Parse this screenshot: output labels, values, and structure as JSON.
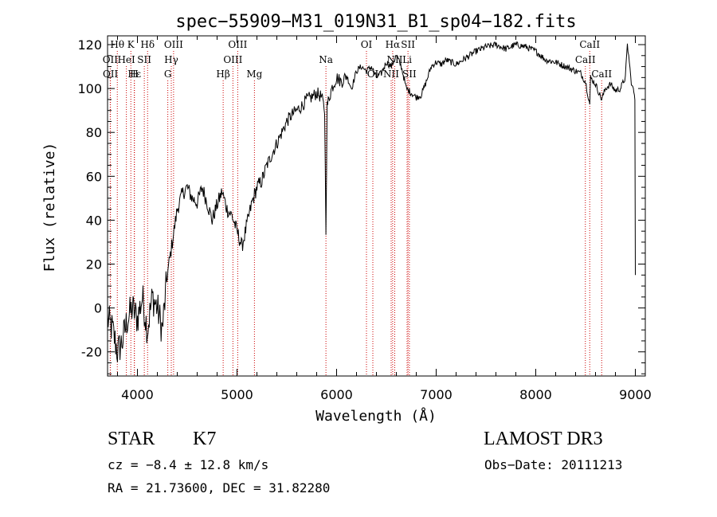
{
  "chart_data": {
    "type": "line",
    "title": "spec−55909−M31_019N31_B1_sp04−182.fits",
    "xlabel": "Wavelength (Å)",
    "ylabel": "Flux (relative)",
    "xlim": [
      3700,
      9100
    ],
    "ylim": [
      -31,
      124
    ],
    "xticks": [
      4000,
      5000,
      6000,
      7000,
      8000,
      9000
    ],
    "yticks": [
      -20,
      0,
      20,
      40,
      60,
      80,
      100,
      120
    ],
    "grid": false,
    "series": [
      {
        "name": "flux",
        "x": [
          3700,
          3750,
          3800,
          3850,
          3900,
          3950,
          4000,
          4050,
          4100,
          4150,
          4200,
          4250,
          4300,
          4350,
          4400,
          4450,
          4500,
          4550,
          4600,
          4650,
          4700,
          4750,
          4800,
          4850,
          4900,
          4950,
          5000,
          5050,
          5100,
          5150,
          5200,
          5250,
          5300,
          5350,
          5400,
          5450,
          5500,
          5550,
          5600,
          5650,
          5700,
          5750,
          5800,
          5850,
          5880,
          5893,
          5905,
          5950,
          6000,
          6050,
          6100,
          6150,
          6200,
          6250,
          6300,
          6350,
          6400,
          6450,
          6500,
          6550,
          6600,
          6650,
          6700,
          6750,
          6800,
          6850,
          6900,
          6950,
          7000,
          7050,
          7100,
          7150,
          7200,
          7300,
          7400,
          7500,
          7600,
          7700,
          7800,
          7900,
          8000,
          8100,
          8200,
          8300,
          8400,
          8450,
          8500,
          8542,
          8550,
          8600,
          8662,
          8700,
          8750,
          8800,
          8850,
          8900,
          8920,
          8940,
          8960,
          8980,
          8995,
          9000
        ],
        "y": [
          -5,
          -10,
          -20,
          -15,
          -5,
          0,
          -5,
          5,
          -10,
          5,
          0,
          -10,
          15,
          30,
          45,
          52,
          55,
          50,
          48,
          55,
          48,
          40,
          47,
          53,
          45,
          42,
          35,
          28,
          38,
          48,
          55,
          58,
          65,
          70,
          75,
          80,
          85,
          88,
          90,
          92,
          95,
          96,
          98,
          96,
          90,
          36,
          92,
          100,
          105,
          103,
          106,
          100,
          108,
          110,
          108,
          110,
          105,
          107,
          112,
          110,
          115,
          110,
          100,
          98,
          96,
          97,
          103,
          110,
          112,
          111,
          113,
          112,
          111,
          114,
          117,
          119,
          120,
          118,
          120,
          119,
          117,
          113,
          112,
          110,
          108,
          107,
          103,
          93,
          105,
          102,
          95,
          100,
          102,
          99,
          100,
          105,
          120,
          112,
          102,
          100,
          95,
          15
        ]
      }
    ],
    "lines": [
      {
        "label": "Hθ",
        "wave": 3798,
        "row": 0
      },
      {
        "label": "K",
        "wave": 3934,
        "row": 0
      },
      {
        "label": "Hδ",
        "wave": 4102,
        "row": 0
      },
      {
        "label": "OIII",
        "wave": 4363,
        "row": 0
      },
      {
        "label": "OIII",
        "wave": 5007,
        "row": 0
      },
      {
        "label": "OI",
        "wave": 6300,
        "row": 0
      },
      {
        "label": "Hα",
        "wave": 6563,
        "row": 0
      },
      {
        "label": "SII",
        "wave": 6717,
        "row": 0
      },
      {
        "label": "CaII",
        "wave": 8542,
        "row": 0
      },
      {
        "label": "OII",
        "wave": 3727,
        "row": 1
      },
      {
        "label": "HeI",
        "wave": 3889,
        "row": 1
      },
      {
        "label": "SII",
        "wave": 4069,
        "row": 1
      },
      {
        "label": "Hγ",
        "wave": 4340,
        "row": 1
      },
      {
        "label": "OIII",
        "wave": 4959,
        "row": 1
      },
      {
        "label": "Na",
        "wave": 5893,
        "row": 1
      },
      {
        "label": "NII",
        "wave": 6584,
        "row": 1
      },
      {
        "label": "Li",
        "wave": 6708,
        "row": 1
      },
      {
        "label": "CaII",
        "wave": 8498,
        "row": 1
      },
      {
        "label": "OII",
        "wave": 3729,
        "row": 2
      },
      {
        "label": "Hε",
        "wave": 3970,
        "row": 2
      },
      {
        "label": "H",
        "wave": 3968,
        "row": 2
      },
      {
        "label": "G",
        "wave": 4305,
        "row": 2
      },
      {
        "label": "Hβ",
        "wave": 4861,
        "row": 2
      },
      {
        "label": "Mg",
        "wave": 5175,
        "row": 2
      },
      {
        "label": "OI",
        "wave": 6364,
        "row": 2
      },
      {
        "label": "NII",
        "wave": 6548,
        "row": 2
      },
      {
        "label": "SII",
        "wave": 6731,
        "row": 2
      },
      {
        "label": "CaII",
        "wave": 8662,
        "row": 2
      }
    ]
  },
  "info": {
    "object_class": "STAR",
    "subclass": "K7",
    "survey": "LAMOST DR3",
    "cz": "cz = −8.4 ± 12.8 km/s",
    "obs_date": "Obs−Date: 20111213",
    "radec": "RA =  21.73600, DEC =  31.82280"
  }
}
